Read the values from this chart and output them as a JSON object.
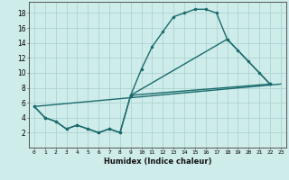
{
  "bg_color": "#ceecea",
  "line_color": "#1a6b6b",
  "grid_color": "#aed4d0",
  "xlabel": "Humidex (Indice chaleur)",
  "xlim": [
    -0.5,
    23.5
  ],
  "ylim": [
    0,
    19.5
  ],
  "xticks": [
    0,
    1,
    2,
    3,
    4,
    5,
    6,
    7,
    8,
    9,
    10,
    11,
    12,
    13,
    14,
    15,
    16,
    17,
    18,
    19,
    20,
    21,
    22,
    23
  ],
  "yticks": [
    2,
    4,
    6,
    8,
    10,
    12,
    14,
    16,
    18
  ],
  "series1_x": [
    0,
    1,
    2,
    3,
    4,
    5,
    6,
    7,
    8,
    9,
    10,
    11,
    12,
    13,
    14,
    15,
    16,
    17,
    18,
    19,
    20,
    21,
    22
  ],
  "series1_y": [
    5.5,
    4.0,
    3.5,
    2.5,
    3.0,
    2.5,
    2.0,
    2.5,
    2.0,
    7.0,
    10.5,
    13.5,
    15.5,
    17.5,
    18.0,
    18.5,
    18.5,
    18.0,
    14.5,
    13.0,
    11.5,
    10.0,
    8.5
  ],
  "series2_x": [
    0,
    1,
    2,
    3,
    4,
    5,
    6,
    7,
    8,
    9,
    22
  ],
  "series2_y": [
    5.5,
    4.0,
    3.5,
    2.5,
    3.0,
    2.5,
    2.0,
    2.5,
    2.0,
    7.0,
    8.5
  ],
  "series3_x": [
    0,
    23
  ],
  "series3_y": [
    5.5,
    8.5
  ],
  "series4_x": [
    9,
    18,
    22
  ],
  "series4_y": [
    7.0,
    14.5,
    8.5
  ],
  "marker_size": 2.5,
  "linewidth": 1.0
}
